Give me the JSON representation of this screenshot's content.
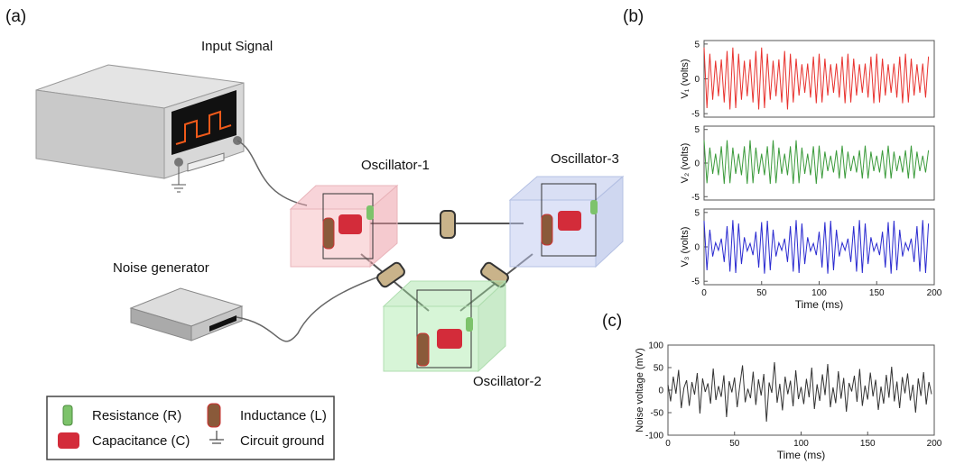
{
  "panel_labels": [
    "(a)",
    "(b)",
    "(c)"
  ],
  "diagram": {
    "input_signal": "Input Signal",
    "oscillator_1": "Oscillator-1",
    "oscillator_3": "Oscillator-3",
    "noise_generator": "Noise generator",
    "oscillator_2": "Oscillator-2"
  },
  "legend": {
    "items": [
      "Resistance (R)",
      "Inductance (L)",
      "Capacitance (C)",
      "Circuit ground"
    ]
  },
  "chart_data": [
    {
      "type": "line",
      "ylabel": "V₁ (volts)",
      "color": "#e8322e",
      "xlim": [
        0,
        200
      ],
      "ylim": [
        -5.5,
        5.5
      ],
      "yticks": [
        -5,
        0,
        5
      ],
      "x": [
        0,
        2.5,
        5,
        7.5,
        10,
        12.5,
        15,
        17.5,
        20,
        22.5,
        25,
        27.5,
        30,
        32.5,
        35,
        37.5,
        40,
        42.5,
        45,
        47.5,
        50,
        52.5,
        55,
        57.5,
        60,
        62.5,
        65,
        67.5,
        70,
        72.5,
        75,
        77.5,
        80,
        82.5,
        85,
        87.5,
        90,
        92.5,
        95,
        97.5,
        100,
        102.5,
        105,
        107.5,
        110,
        112.5,
        115,
        117.5,
        120,
        122.5,
        125,
        127.5,
        130,
        132.5,
        135,
        137.5,
        140,
        142.5,
        145,
        147.5,
        150,
        152.5,
        155,
        157.5,
        160,
        162.5,
        165,
        167.5,
        170,
        172.5,
        175,
        177.5,
        180,
        182.5,
        185,
        187.5,
        190,
        192.5,
        195
      ],
      "values": [
        4.5,
        -4.2,
        3.6,
        -3.0,
        2.6,
        -2.5,
        2.8,
        -3.4,
        4.0,
        -4.4,
        4.5,
        -4.2,
        3.6,
        -3.0,
        2.6,
        -2.5,
        2.8,
        -3.4,
        4.0,
        -4.4,
        4.5,
        -4.2,
        3.6,
        -3.0,
        2.6,
        -2.5,
        2.8,
        -3.4,
        4.0,
        -4.4,
        3.6,
        -3.4,
        2.9,
        -2.4,
        2.1,
        -2.0,
        2.2,
        -2.7,
        3.2,
        -3.5,
        3.6,
        -3.4,
        2.9,
        -2.4,
        2.1,
        -2.0,
        2.2,
        -2.7,
        3.2,
        -3.5,
        3.6,
        -3.4,
        2.9,
        -2.4,
        2.1,
        -2.0,
        2.2,
        -2.7,
        3.2,
        -3.5,
        3.6,
        -3.4,
        2.9,
        -2.4,
        2.1,
        -2.0,
        2.2,
        -2.7,
        3.2,
        -3.5,
        3.6,
        -3.4,
        2.9,
        -2.4,
        2.1,
        -2.0,
        2.2,
        -2.7,
        3.2
      ]
    },
    {
      "type": "line",
      "ylabel": "V₂ (volts)",
      "color": "#3a9a3a",
      "xlim": [
        0,
        200
      ],
      "ylim": [
        -5.5,
        5.5
      ],
      "yticks": [
        -5,
        0,
        5
      ],
      "x": [
        0,
        2.5,
        5,
        7.5,
        10,
        12.5,
        15,
        17.5,
        20,
        22.5,
        25,
        27.5,
        30,
        32.5,
        35,
        37.5,
        40,
        42.5,
        45,
        47.5,
        50,
        52.5,
        55,
        57.5,
        60,
        62.5,
        65,
        67.5,
        70,
        72.5,
        75,
        77.5,
        80,
        82.5,
        85,
        87.5,
        90,
        92.5,
        95,
        97.5,
        100,
        102.5,
        105,
        107.5,
        110,
        112.5,
        115,
        117.5,
        120,
        122.5,
        125,
        127.5,
        130,
        132.5,
        135,
        137.5,
        140,
        142.5,
        145,
        147.5,
        150,
        152.5,
        155,
        157.5,
        160,
        162.5,
        165,
        167.5,
        170,
        172.5,
        175,
        177.5,
        180,
        182.5,
        185,
        187.5,
        190,
        192.5,
        195
      ],
      "values": [
        3.4,
        -3.0,
        2.3,
        -1.6,
        1.4,
        -1.8,
        2.5,
        -3.1,
        3.4,
        -3.0,
        2.3,
        -1.6,
        1.4,
        -1.8,
        2.5,
        -3.1,
        3.4,
        -3.0,
        2.3,
        -1.6,
        1.4,
        -1.8,
        2.5,
        -3.1,
        3.4,
        -3.0,
        2.3,
        -1.6,
        1.4,
        -1.8,
        2.5,
        -3.1,
        3.4,
        -3.0,
        2.3,
        -1.6,
        1.4,
        -1.8,
        2.5,
        -3.1,
        2.6,
        -2.3,
        1.7,
        -1.2,
        1.1,
        -1.4,
        1.9,
        -2.3,
        2.6,
        -2.3,
        1.7,
        -1.2,
        1.1,
        -1.4,
        1.9,
        -2.3,
        2.6,
        -2.3,
        1.7,
        -1.2,
        1.1,
        -1.4,
        1.9,
        -2.3,
        2.6,
        -2.3,
        1.7,
        -1.2,
        1.1,
        -1.4,
        1.9,
        -2.3,
        2.6,
        -2.3,
        1.7,
        -1.2,
        1.1,
        -1.4,
        1.9
      ]
    },
    {
      "type": "line",
      "ylabel": "V₃ (volts)",
      "xlabel": "Time (ms)",
      "color": "#2a2ad0",
      "xlim": [
        0,
        200
      ],
      "ylim": [
        -5.5,
        5.5
      ],
      "yticks": [
        -5,
        0,
        5
      ],
      "xticks": [
        0,
        50,
        100,
        150,
        200
      ],
      "x": [
        0,
        2.5,
        5,
        7.5,
        10,
        12.5,
        15,
        17.5,
        20,
        22.5,
        25,
        27.5,
        30,
        32.5,
        35,
        37.5,
        40,
        42.5,
        45,
        47.5,
        50,
        52.5,
        55,
        57.5,
        60,
        62.5,
        65,
        67.5,
        70,
        72.5,
        75,
        77.5,
        80,
        82.5,
        85,
        87.5,
        90,
        92.5,
        95,
        97.5,
        100,
        102.5,
        105,
        107.5,
        110,
        112.5,
        115,
        117.5,
        120,
        122.5,
        125,
        127.5,
        130,
        132.5,
        135,
        137.5,
        140,
        142.5,
        145,
        147.5,
        150,
        152.5,
        155,
        157.5,
        160,
        162.5,
        165,
        167.5,
        170,
        172.5,
        175,
        177.5,
        180,
        182.5,
        185,
        187.5,
        190,
        192.5,
        195
      ],
      "values": [
        3.8,
        -3.4,
        2.5,
        -1.4,
        0.6,
        -0.5,
        1.2,
        -2.2,
        3.0,
        -3.6,
        3.9,
        -3.8,
        3.4,
        -2.5,
        1.4,
        -0.6,
        0.5,
        -1.2,
        2.2,
        -3.0,
        3.6,
        -3.9,
        3.8,
        -3.4,
        2.5,
        -1.4,
        0.6,
        -0.5,
        1.2,
        -2.2,
        3.0,
        -3.6,
        3.9,
        -3.8,
        3.4,
        -2.5,
        1.4,
        -0.6,
        0.5,
        -1.2,
        2.2,
        -3.0,
        3.6,
        -3.9,
        3.8,
        -3.4,
        2.5,
        -1.4,
        0.6,
        -0.5,
        1.2,
        -2.2,
        3.0,
        -3.6,
        3.9,
        -3.8,
        3.4,
        -2.5,
        1.4,
        -0.6,
        0.5,
        -1.2,
        2.2,
        -3.0,
        3.6,
        -3.9,
        3.8,
        -3.4,
        2.5,
        -1.4,
        0.6,
        -0.5,
        1.2,
        -2.2,
        3.0,
        -3.6,
        3.9,
        -3.8,
        3.4
      ]
    },
    {
      "type": "line",
      "ylabel": "Noise voltage (mV)",
      "xlabel": "Time (ms)",
      "color": "#333333",
      "xlim": [
        0,
        200
      ],
      "ylim": [
        -100,
        100
      ],
      "yticks": [
        -100,
        -50,
        0,
        50,
        100
      ],
      "xticks": [
        0,
        50,
        100,
        150,
        200
      ],
      "x": [
        0,
        2,
        4,
        6,
        8,
        10,
        12,
        14,
        16,
        18,
        20,
        22,
        24,
        26,
        28,
        30,
        32,
        34,
        36,
        38,
        40,
        42,
        44,
        46,
        48,
        50,
        52,
        54,
        56,
        58,
        60,
        62,
        64,
        66,
        68,
        70,
        72,
        74,
        76,
        78,
        80,
        82,
        84,
        86,
        88,
        90,
        92,
        94,
        96,
        98,
        100,
        102,
        104,
        106,
        108,
        110,
        112,
        114,
        116,
        118,
        120,
        122,
        124,
        126,
        128,
        130,
        132,
        134,
        136,
        138,
        140,
        142,
        144,
        146,
        148,
        150,
        152,
        154,
        156,
        158,
        160,
        162,
        164,
        166,
        168,
        170,
        172,
        174,
        176,
        178,
        180,
        182,
        184,
        186,
        188,
        190,
        192,
        194,
        196,
        198
      ],
      "values": [
        12,
        -25,
        30,
        -8,
        45,
        -40,
        5,
        22,
        -35,
        18,
        -10,
        38,
        -52,
        26,
        -4,
        15,
        -30,
        48,
        -22,
        9,
        -15,
        33,
        -60,
        20,
        -5,
        28,
        -38,
        11,
        55,
        -27,
        3,
        -18,
        41,
        -33,
        24,
        -12,
        36,
        -70,
        17,
        -6,
        62,
        -28,
        14,
        -45,
        30,
        -9,
        21,
        -36,
        44,
        -20,
        7,
        -31,
        25,
        -16,
        50,
        -42,
        13,
        -24,
        35,
        -11,
        58,
        -38,
        6,
        -29,
        42,
        -19,
        27,
        -48,
        16,
        -3,
        32,
        -26,
        47,
        -35,
        10,
        -21,
        39,
        -14,
        23,
        -44,
        8,
        -30,
        34,
        -17,
        52,
        -25,
        19,
        -40,
        29,
        -7,
        37,
        -23,
        12,
        -50,
        26,
        -13,
        40,
        -32,
        18,
        -9
      ]
    }
  ]
}
